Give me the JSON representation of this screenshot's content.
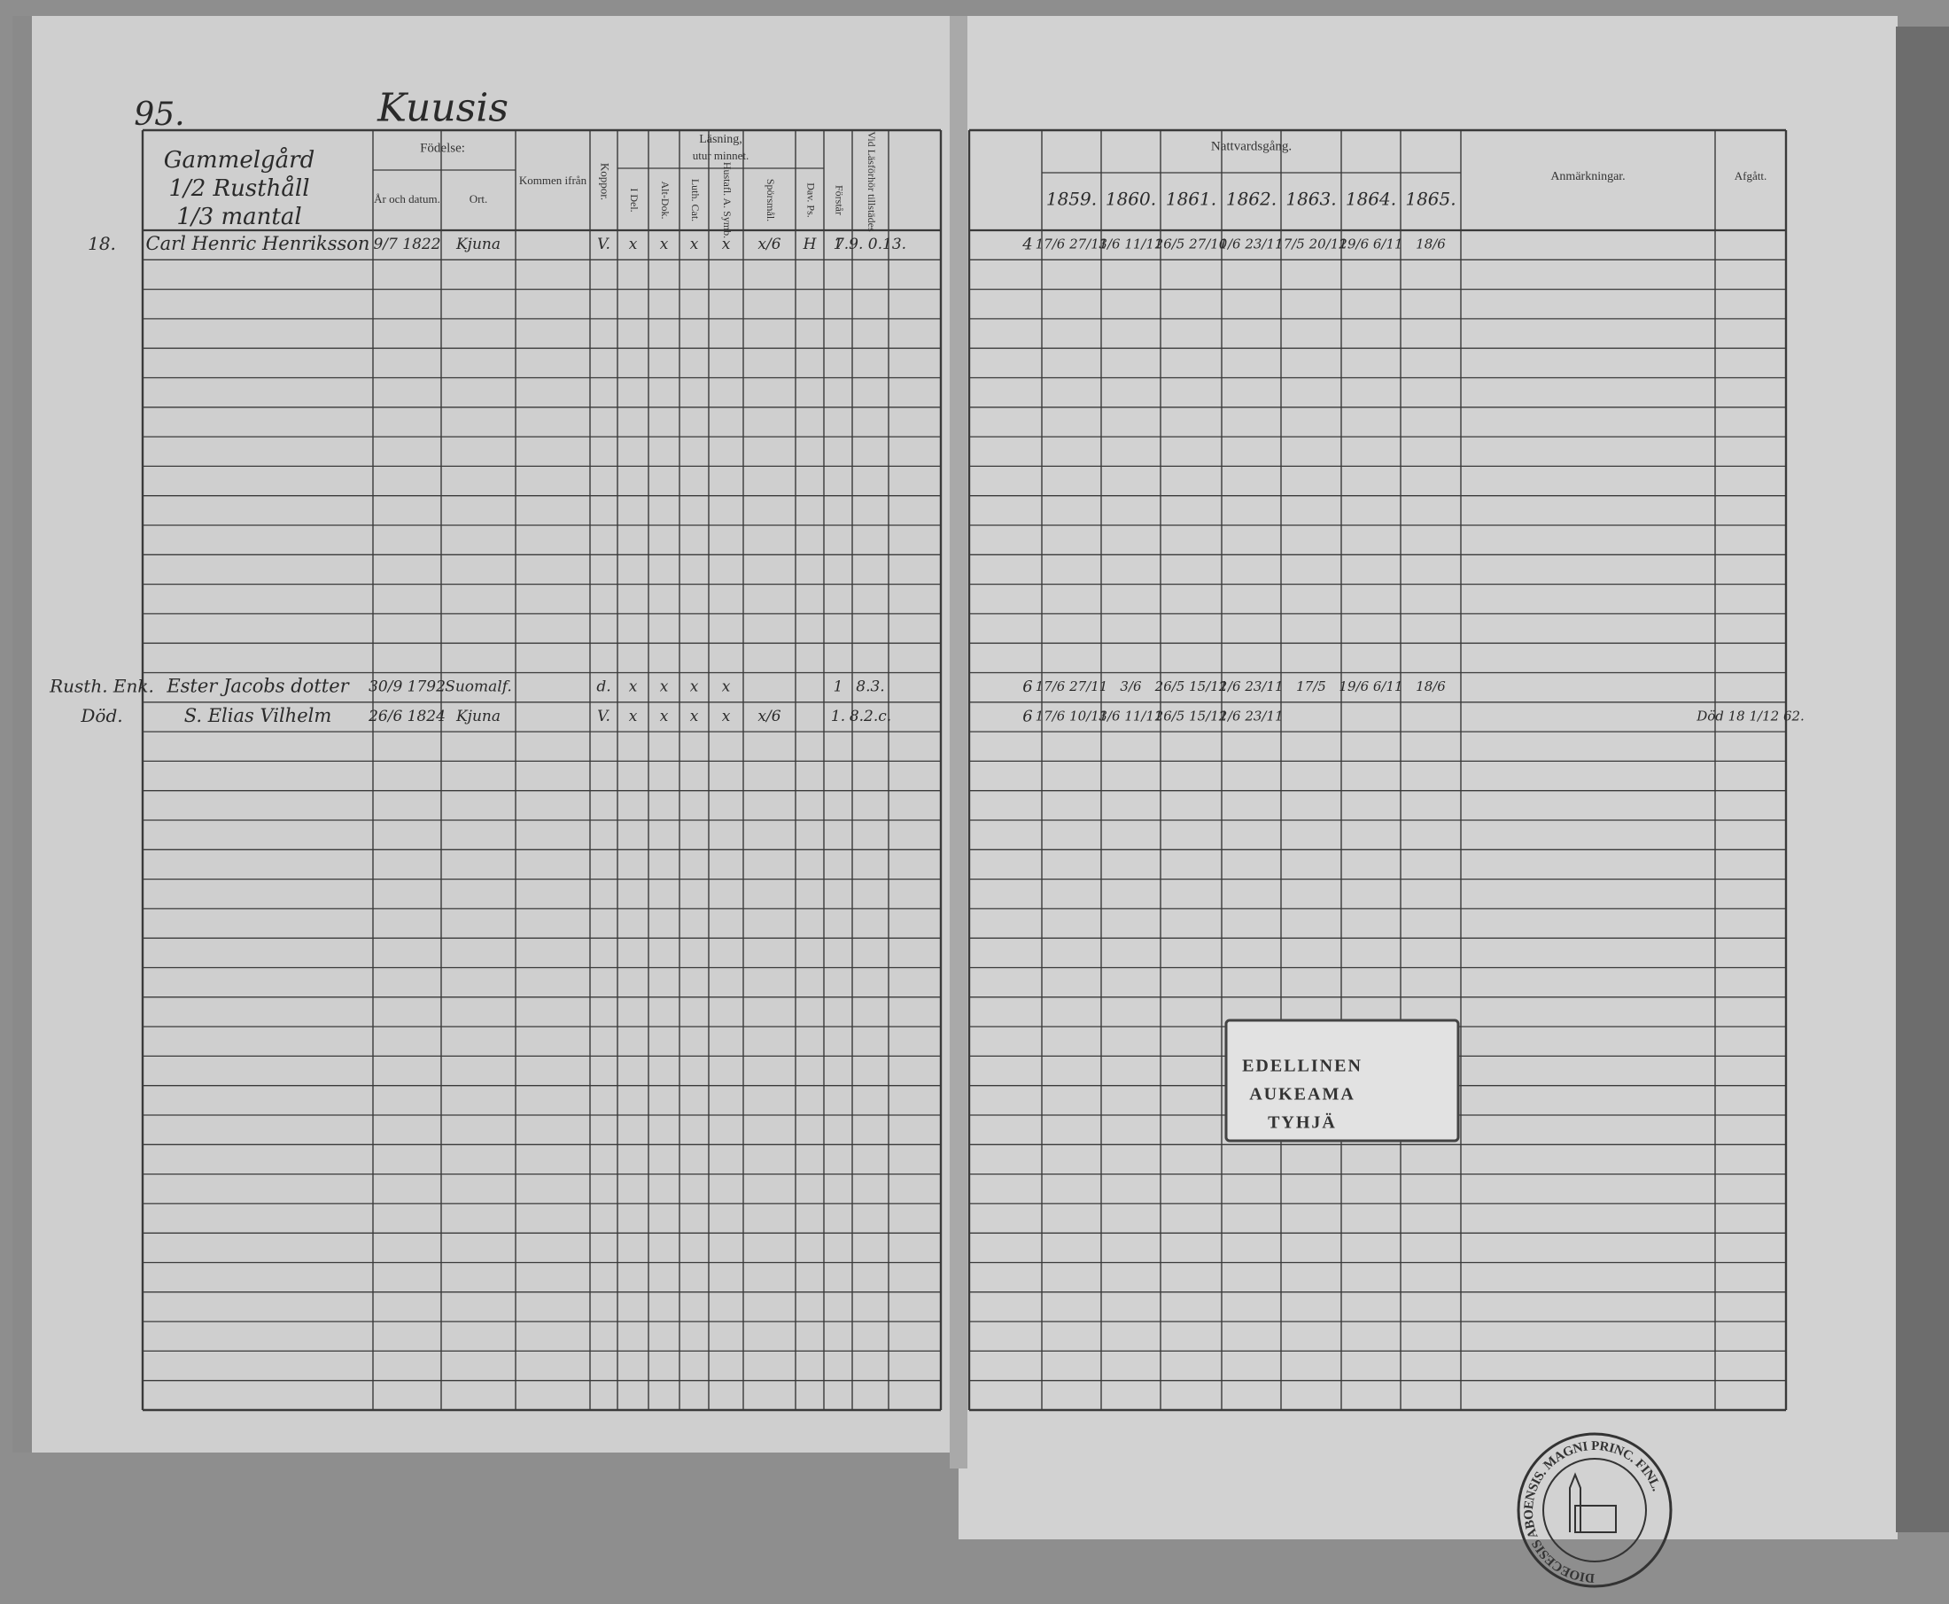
{
  "left_page": {
    "page_number": "95.",
    "village": "Kuusis",
    "farm": [
      "Gammelgård",
      "1/2 Rusthåll",
      "1/3 mantal"
    ],
    "headers": {
      "birth": "Födelse:",
      "birth_date": "År och datum.",
      "birth_place": "Ort.",
      "from": "Kommen ifrån",
      "koppor": "Koppor.",
      "reading_title": "Läsning,",
      "reading_subtitle": "utur minnet.",
      "i_del": "I Del.",
      "alt_dok": "Alt-Dok.",
      "luth_cat": "Luth. Cat.",
      "hustafl": "Hustafl. A. Symb.",
      "sporsmal": "Spörsmål.",
      "dav_ps": "Dav. Ps.",
      "forstar": "Förstår",
      "tillstades": "Vid Läsförhör tillstädes"
    },
    "entries": [
      {
        "number": "18.",
        "name": "Carl Henric Henriksson",
        "birth_date": "9/7 1822",
        "birth_place": "Kjuna",
        "koppor": "V.",
        "i_del": "x",
        "alt_dok": "x",
        "luth_cat": "x",
        "hustafl": "x",
        "sporsmal": "x/6",
        "dav_ps": "H",
        "forstar": "1",
        "tillstades": "7.9. 0.13."
      },
      {
        "number": "Rusth. Enk.",
        "name": "Ester Jacobs dotter",
        "birth_date": "30/9 1792",
        "birth_place": "Suomalf.",
        "koppor": "d.",
        "i_del": "x",
        "alt_dok": "x",
        "luth_cat": "x",
        "hustafl": "x",
        "forstar": "1",
        "tillstades": "8.3."
      },
      {
        "number": "Död.",
        "name": "S. Elias Vilhelm",
        "birth_date": "26/6 1824",
        "birth_place": "Kjuna",
        "koppor": "V.",
        "i_del": "x",
        "alt_dok": "x",
        "luth_cat": "x",
        "hustafl": "x",
        "sporsmal": "x/6",
        "forstar": "1.",
        "tillstades": "8.2.c."
      }
    ]
  },
  "right_page": {
    "headers": {
      "communion": "Nattvardsgång.",
      "years": [
        "1859.",
        "1860.",
        "1861.",
        "1862.",
        "1863.",
        "1864.",
        "1865."
      ],
      "remarks": "Anmärkningar.",
      "departure": "Afgått."
    },
    "entries": [
      {
        "mark": "4",
        "communion": [
          "17/6 27/11",
          "3/6 11/11",
          "26/5 27/10",
          "1/6 23/11",
          "17/5 20/12",
          "19/6 6/11",
          "18/6"
        ]
      },
      {
        "mark": "6",
        "communion": [
          "17/6 27/11",
          "3/6",
          "26/5 15/12",
          "1/6 23/11",
          "17/5",
          "19/6 6/11",
          "18/6"
        ]
      },
      {
        "mark": "6",
        "communion": [
          "17/6 10/11",
          "3/6 11/11",
          "26/5 15/12",
          "1/6 23/11"
        ],
        "departure": "Död 18 1/12 62."
      }
    ]
  },
  "stamp": {
    "lines": [
      "EDELLINEN",
      "AUKEAMA",
      "TYHJÄ"
    ]
  },
  "seal": {
    "text": "DIOECESIS ABOENSIS. MAGNI PRINC. FINL."
  }
}
